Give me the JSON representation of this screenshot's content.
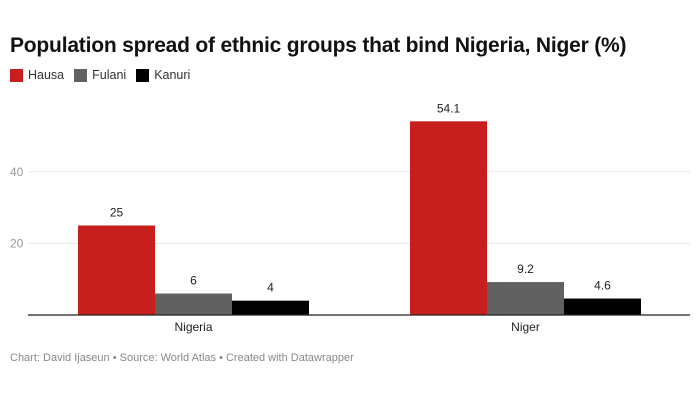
{
  "chart_data": {
    "type": "bar",
    "title": "Population spread of ethnic groups that bind Nigeria, Niger (%)",
    "categories": [
      "Nigeria",
      "Niger"
    ],
    "series": [
      {
        "name": "Hausa",
        "color": "#c71e1e",
        "values": [
          25,
          54.1
        ]
      },
      {
        "name": "Fulani",
        "color": "#616161",
        "values": [
          6,
          9.2
        ]
      },
      {
        "name": "Kanuri",
        "color": "#000000",
        "values": [
          4,
          4.6
        ]
      }
    ],
    "yticks": [
      20,
      40
    ],
    "ylim": [
      0,
      56
    ],
    "grid": true,
    "legend": "top-left",
    "xlabel": "",
    "ylabel": ""
  },
  "footer": "Chart: David Ijaseun • Source: World Atlas • Created with Datawrapper"
}
